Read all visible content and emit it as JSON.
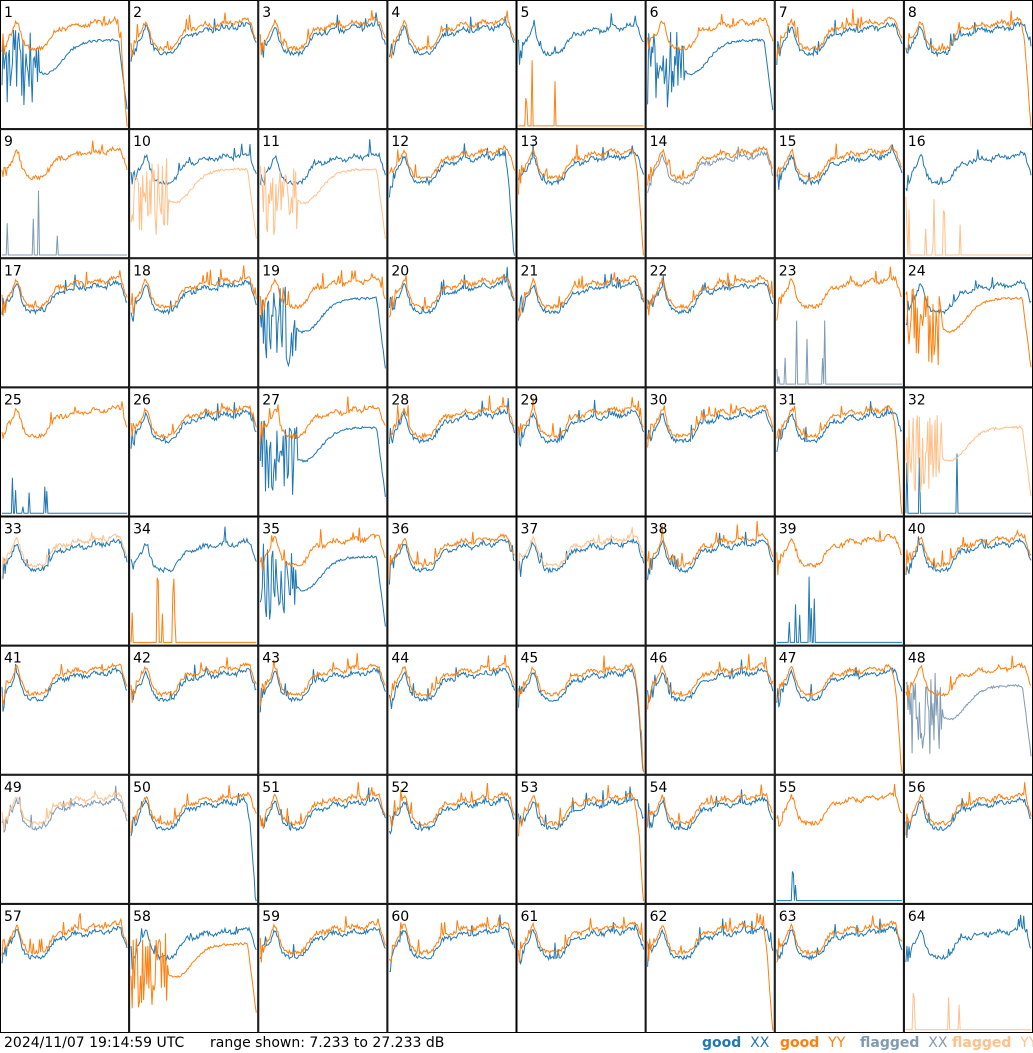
{
  "footer": {
    "timestamp": "2024/11/07 19:14:59 UTC",
    "range_text": "range shown: 7.233 to 27.233 dB"
  },
  "legend": [
    {
      "prefix": "good",
      "pol": "XX",
      "color": "#1f77b4"
    },
    {
      "prefix": "good",
      "pol": "YY",
      "color": "#ff7f0e"
    },
    {
      "prefix": "flagged",
      "pol": "XX",
      "color": "#7f9bb4"
    },
    {
      "prefix": "flagged",
      "pol": "YY",
      "color": "#ffc08a"
    }
  ],
  "colors": {
    "good_xx": "#1f77b4",
    "good_yy": "#ff7f0e",
    "flagged_xx": "#7f9bb4",
    "flagged_yy": "#ffc08a"
  },
  "chart_data": {
    "type": "line",
    "grid": "8x8 small multiples",
    "y_range_db": [
      7.233,
      27.233
    ],
    "panels": [
      {
        "label": "1",
        "xx": "good",
        "yy": "good",
        "xx_shape": "low",
        "yy_shape": "dropend"
      },
      {
        "label": "2",
        "xx": "good",
        "yy": "good",
        "xx_shape": "normal",
        "yy_shape": "normal"
      },
      {
        "label": "3",
        "xx": "good",
        "yy": "good",
        "xx_shape": "normal",
        "yy_shape": "normal"
      },
      {
        "label": "4",
        "xx": "good",
        "yy": "good",
        "xx_shape": "normal",
        "yy_shape": "normal"
      },
      {
        "label": "5",
        "xx": "good",
        "yy": "good",
        "xx_shape": "normal",
        "yy_shape": "zero"
      },
      {
        "label": "6",
        "xx": "good",
        "yy": "good",
        "xx_shape": "low",
        "yy_shape": "normal"
      },
      {
        "label": "7",
        "xx": "good",
        "yy": "good",
        "xx_shape": "normal",
        "yy_shape": "normal"
      },
      {
        "label": "8",
        "xx": "good",
        "yy": "good",
        "xx_shape": "normal",
        "yy_shape": "dropend"
      },
      {
        "label": "9",
        "xx": "flagged",
        "yy": "good",
        "xx_shape": "zero",
        "yy_shape": "normal"
      },
      {
        "label": "10",
        "xx": "good",
        "yy": "flagged",
        "xx_shape": "normal",
        "yy_shape": "low"
      },
      {
        "label": "11",
        "xx": "good",
        "yy": "flagged",
        "xx_shape": "normal",
        "yy_shape": "low"
      },
      {
        "label": "12",
        "xx": "good",
        "yy": "good",
        "xx_shape": "dropend",
        "yy_shape": "normal"
      },
      {
        "label": "13",
        "xx": "good",
        "yy": "good",
        "xx_shape": "normal",
        "yy_shape": "dropend"
      },
      {
        "label": "14",
        "xx": "flagged",
        "yy": "good",
        "xx_shape": "normal",
        "yy_shape": "normal"
      },
      {
        "label": "15",
        "xx": "good",
        "yy": "good",
        "xx_shape": "normal",
        "yy_shape": "normal"
      },
      {
        "label": "16",
        "xx": "good",
        "yy": "flagged",
        "xx_shape": "normal",
        "yy_shape": "zero"
      },
      {
        "label": "17",
        "xx": "good",
        "yy": "good",
        "xx_shape": "normal",
        "yy_shape": "normal"
      },
      {
        "label": "18",
        "xx": "good",
        "yy": "good",
        "xx_shape": "normal",
        "yy_shape": "normal"
      },
      {
        "label": "19",
        "xx": "good",
        "yy": "good",
        "xx_shape": "low",
        "yy_shape": "normal"
      },
      {
        "label": "20",
        "xx": "good",
        "yy": "good",
        "xx_shape": "normal",
        "yy_shape": "normal"
      },
      {
        "label": "21",
        "xx": "good",
        "yy": "good",
        "xx_shape": "normal",
        "yy_shape": "normal"
      },
      {
        "label": "22",
        "xx": "good",
        "yy": "good",
        "xx_shape": "normal",
        "yy_shape": "normal"
      },
      {
        "label": "23",
        "xx": "flagged",
        "yy": "good",
        "xx_shape": "zero",
        "yy_shape": "normal"
      },
      {
        "label": "24",
        "xx": "good",
        "yy": "good",
        "xx_shape": "normal",
        "yy_shape": "low"
      },
      {
        "label": "25",
        "xx": "good",
        "yy": "good",
        "xx_shape": "zero",
        "yy_shape": "normal"
      },
      {
        "label": "26",
        "xx": "good",
        "yy": "good",
        "xx_shape": "normal",
        "yy_shape": "normal"
      },
      {
        "label": "27",
        "xx": "good",
        "yy": "good",
        "xx_shape": "low",
        "yy_shape": "normal"
      },
      {
        "label": "28",
        "xx": "good",
        "yy": "good",
        "xx_shape": "normal",
        "yy_shape": "normal"
      },
      {
        "label": "29",
        "xx": "good",
        "yy": "good",
        "xx_shape": "normal",
        "yy_shape": "normal"
      },
      {
        "label": "30",
        "xx": "good",
        "yy": "good",
        "xx_shape": "normal",
        "yy_shape": "normal"
      },
      {
        "label": "31",
        "xx": "good",
        "yy": "good",
        "xx_shape": "normal",
        "yy_shape": "dropend"
      },
      {
        "label": "32",
        "xx": "good",
        "yy": "flagged",
        "xx_shape": "zero",
        "yy_shape": "low"
      },
      {
        "label": "33",
        "xx": "good",
        "yy": "flagged",
        "xx_shape": "normal",
        "yy_shape": "normal"
      },
      {
        "label": "34",
        "xx": "good",
        "yy": "good",
        "xx_shape": "normal",
        "yy_shape": "zero"
      },
      {
        "label": "35",
        "xx": "good",
        "yy": "good",
        "xx_shape": "low",
        "yy_shape": "normal"
      },
      {
        "label": "36",
        "xx": "good",
        "yy": "good",
        "xx_shape": "normal",
        "yy_shape": "normal"
      },
      {
        "label": "37",
        "xx": "good",
        "yy": "flagged",
        "xx_shape": "normal",
        "yy_shape": "normal"
      },
      {
        "label": "38",
        "xx": "good",
        "yy": "good",
        "xx_shape": "normal",
        "yy_shape": "normal"
      },
      {
        "label": "39",
        "xx": "good",
        "yy": "good",
        "xx_shape": "zero",
        "yy_shape": "normal"
      },
      {
        "label": "40",
        "xx": "good",
        "yy": "good",
        "xx_shape": "normal",
        "yy_shape": "normal"
      },
      {
        "label": "41",
        "xx": "good",
        "yy": "good",
        "xx_shape": "normal",
        "yy_shape": "normal"
      },
      {
        "label": "42",
        "xx": "good",
        "yy": "good",
        "xx_shape": "normal",
        "yy_shape": "normal"
      },
      {
        "label": "43",
        "xx": "good",
        "yy": "good",
        "xx_shape": "normal",
        "yy_shape": "normal"
      },
      {
        "label": "44",
        "xx": "good",
        "yy": "good",
        "xx_shape": "normal",
        "yy_shape": "normal"
      },
      {
        "label": "45",
        "xx": "good",
        "yy": "good",
        "xx_shape": "dropend",
        "yy_shape": "dropend"
      },
      {
        "label": "46",
        "xx": "good",
        "yy": "good",
        "xx_shape": "normal",
        "yy_shape": "normal"
      },
      {
        "label": "47",
        "xx": "good",
        "yy": "good",
        "xx_shape": "normal",
        "yy_shape": "dropend"
      },
      {
        "label": "48",
        "xx": "flagged",
        "yy": "good",
        "xx_shape": "low",
        "yy_shape": "normal"
      },
      {
        "label": "49",
        "xx": "flagged",
        "yy": "flagged",
        "xx_shape": "normal",
        "yy_shape": "normal"
      },
      {
        "label": "50",
        "xx": "good",
        "yy": "good",
        "xx_shape": "dropend",
        "yy_shape": "normal"
      },
      {
        "label": "51",
        "xx": "good",
        "yy": "good",
        "xx_shape": "normal",
        "yy_shape": "normal"
      },
      {
        "label": "52",
        "xx": "good",
        "yy": "good",
        "xx_shape": "normal",
        "yy_shape": "normal"
      },
      {
        "label": "53",
        "xx": "good",
        "yy": "good",
        "xx_shape": "normal",
        "yy_shape": "dropend"
      },
      {
        "label": "54",
        "xx": "good",
        "yy": "good",
        "xx_shape": "normal",
        "yy_shape": "normal"
      },
      {
        "label": "55",
        "xx": "good",
        "yy": "good",
        "xx_shape": "zero",
        "yy_shape": "normal"
      },
      {
        "label": "56",
        "xx": "good",
        "yy": "good",
        "xx_shape": "normal",
        "yy_shape": "normal"
      },
      {
        "label": "57",
        "xx": "good",
        "yy": "good",
        "xx_shape": "normal",
        "yy_shape": "normal"
      },
      {
        "label": "58",
        "xx": "good",
        "yy": "good",
        "xx_shape": "normal",
        "yy_shape": "low"
      },
      {
        "label": "59",
        "xx": "good",
        "yy": "good",
        "xx_shape": "normal",
        "yy_shape": "normal"
      },
      {
        "label": "60",
        "xx": "good",
        "yy": "good",
        "xx_shape": "normal",
        "yy_shape": "normal"
      },
      {
        "label": "61",
        "xx": "good",
        "yy": "good",
        "xx_shape": "normal",
        "yy_shape": "normal"
      },
      {
        "label": "62",
        "xx": "good",
        "yy": "good",
        "xx_shape": "normal",
        "yy_shape": "dropend"
      },
      {
        "label": "63",
        "xx": "good",
        "yy": "good",
        "xx_shape": "normal",
        "yy_shape": "normal"
      },
      {
        "label": "64",
        "xx": "good",
        "yy": "flagged",
        "xx_shape": "normal",
        "yy_shape": "zero"
      }
    ]
  }
}
